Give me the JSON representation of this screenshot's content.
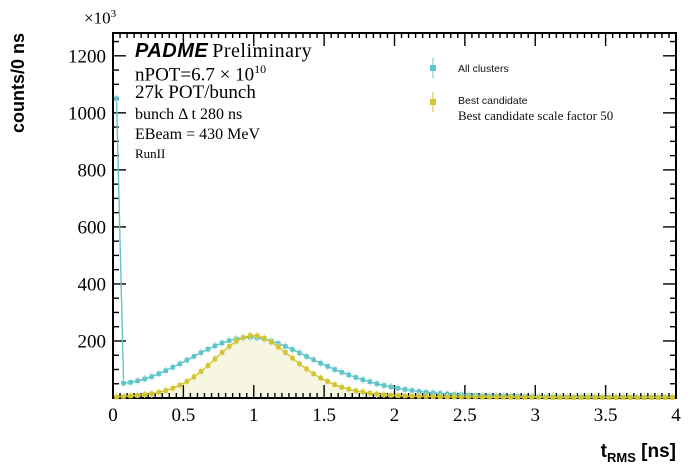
{
  "figure": {
    "y_title": "counts/0 ns",
    "x_title": {
      "main": "t",
      "sub": "RMS",
      "unit": " [ns]"
    },
    "y_power": {
      "base": "×10",
      "exp": "3"
    },
    "annotations": {
      "brand": "PADME",
      "brand_suffix": "Preliminary",
      "npot_prefix": "nPOT=6.7 × 10",
      "npot_exp": "10",
      "pot_bunch": "27k POT/bunch",
      "bunch_dt": "bunch Δ t 280 ns",
      "ebeam": "EBeam = 430 MeV",
      "run": "RunII"
    }
  },
  "legend": {
    "entries": [
      {
        "label": "All clusters",
        "sublabel": ""
      },
      {
        "label": "Best candidate",
        "sublabel": "Best candidate scale factor 50"
      }
    ]
  },
  "chart_data": {
    "type": "scatter",
    "title": "PADME Preliminary",
    "xlabel": "t_RMS [ns]",
    "ylabel": "counts/0 ns",
    "xlim": [
      0,
      4
    ],
    "ylim": [
      0,
      1280
    ],
    "y_values_unit": "10^3 counts",
    "x_ticks": [
      0,
      0.5,
      1,
      1.5,
      2,
      2.5,
      3,
      3.5,
      4
    ],
    "y_ticks": [
      200,
      400,
      600,
      800,
      1000,
      1200
    ],
    "x_minor_step": 0.05,
    "y_minor_step": 50,
    "grid": false,
    "legend_position": "top-right",
    "bin_width_ns": 0.05,
    "x": [
      0.025,
      0.075,
      0.125,
      0.175,
      0.225,
      0.275,
      0.325,
      0.375,
      0.425,
      0.475,
      0.525,
      0.575,
      0.625,
      0.675,
      0.725,
      0.775,
      0.825,
      0.875,
      0.925,
      0.975,
      1.025,
      1.075,
      1.125,
      1.175,
      1.225,
      1.275,
      1.325,
      1.375,
      1.425,
      1.475,
      1.525,
      1.575,
      1.625,
      1.675,
      1.725,
      1.775,
      1.825,
      1.875,
      1.925,
      1.975,
      2.025,
      2.075,
      2.125,
      2.175,
      2.225,
      2.275,
      2.325,
      2.375,
      2.425,
      2.475,
      2.525,
      2.575,
      2.625,
      2.675,
      2.725,
      2.775,
      2.825,
      2.875,
      2.925,
      2.975,
      3.025,
      3.075,
      3.125,
      3.175,
      3.225,
      3.275,
      3.325,
      3.375,
      3.425,
      3.475,
      3.525,
      3.575,
      3.625,
      3.675,
      3.725,
      3.775,
      3.825,
      3.875,
      3.925,
      3.975
    ],
    "series": [
      {
        "name": "All clusters",
        "marker": "square",
        "color": "#5ec6ca",
        "light": "#aee2e4",
        "values": [
          1050,
          52,
          55,
          60,
          67,
          75,
          85,
          96,
          108,
          120,
          133,
          146,
          159,
          171,
          183,
          193,
          201,
          207,
          211,
          213,
          211,
          207,
          200,
          191,
          181,
          170,
          158,
          146,
          134,
          122,
          111,
          100,
          90,
          81,
          72,
          64,
          57,
          50,
          44,
          39,
          34,
          30,
          26,
          23,
          20,
          18,
          16,
          14,
          12,
          11,
          10,
          9,
          8,
          7.5,
          7,
          6.5,
          6,
          5.5,
          5,
          5,
          4.5,
          4.5,
          4,
          4,
          4,
          3.5,
          3.5,
          3.5,
          3,
          3,
          3,
          3,
          3,
          2.5,
          2.5,
          2.5,
          2.5,
          2.5,
          2.5,
          2.5
        ]
      },
      {
        "name": "Best candidate",
        "note": "scale factor 50",
        "marker": "square",
        "color": "#d2c532",
        "light": "#e9e08a",
        "fill": "#f7f6e3",
        "values": [
          3,
          5,
          7,
          9,
          12,
          15,
          20,
          26,
          34,
          45,
          58,
          74,
          93,
          114,
          137,
          160,
          181,
          199,
          212,
          219,
          218,
          210,
          196,
          179,
          160,
          140,
          120,
          102,
          85,
          70,
          58,
          47,
          38,
          31,
          25,
          21,
          17,
          14,
          11,
          9.5,
          8,
          7,
          6,
          5.5,
          5,
          4.5,
          4,
          3.5,
          3.5,
          3,
          3,
          3,
          2.5,
          2.5,
          2.5,
          2.5,
          2,
          2,
          2,
          2,
          2,
          2,
          1.5,
          1.5,
          1.5,
          1.5,
          1.5,
          1.5,
          1.5,
          1.5,
          1.5,
          1.5,
          1.5,
          1.5,
          1.5,
          1.5,
          1.5,
          1.5,
          1.5,
          1.5
        ]
      }
    ]
  }
}
